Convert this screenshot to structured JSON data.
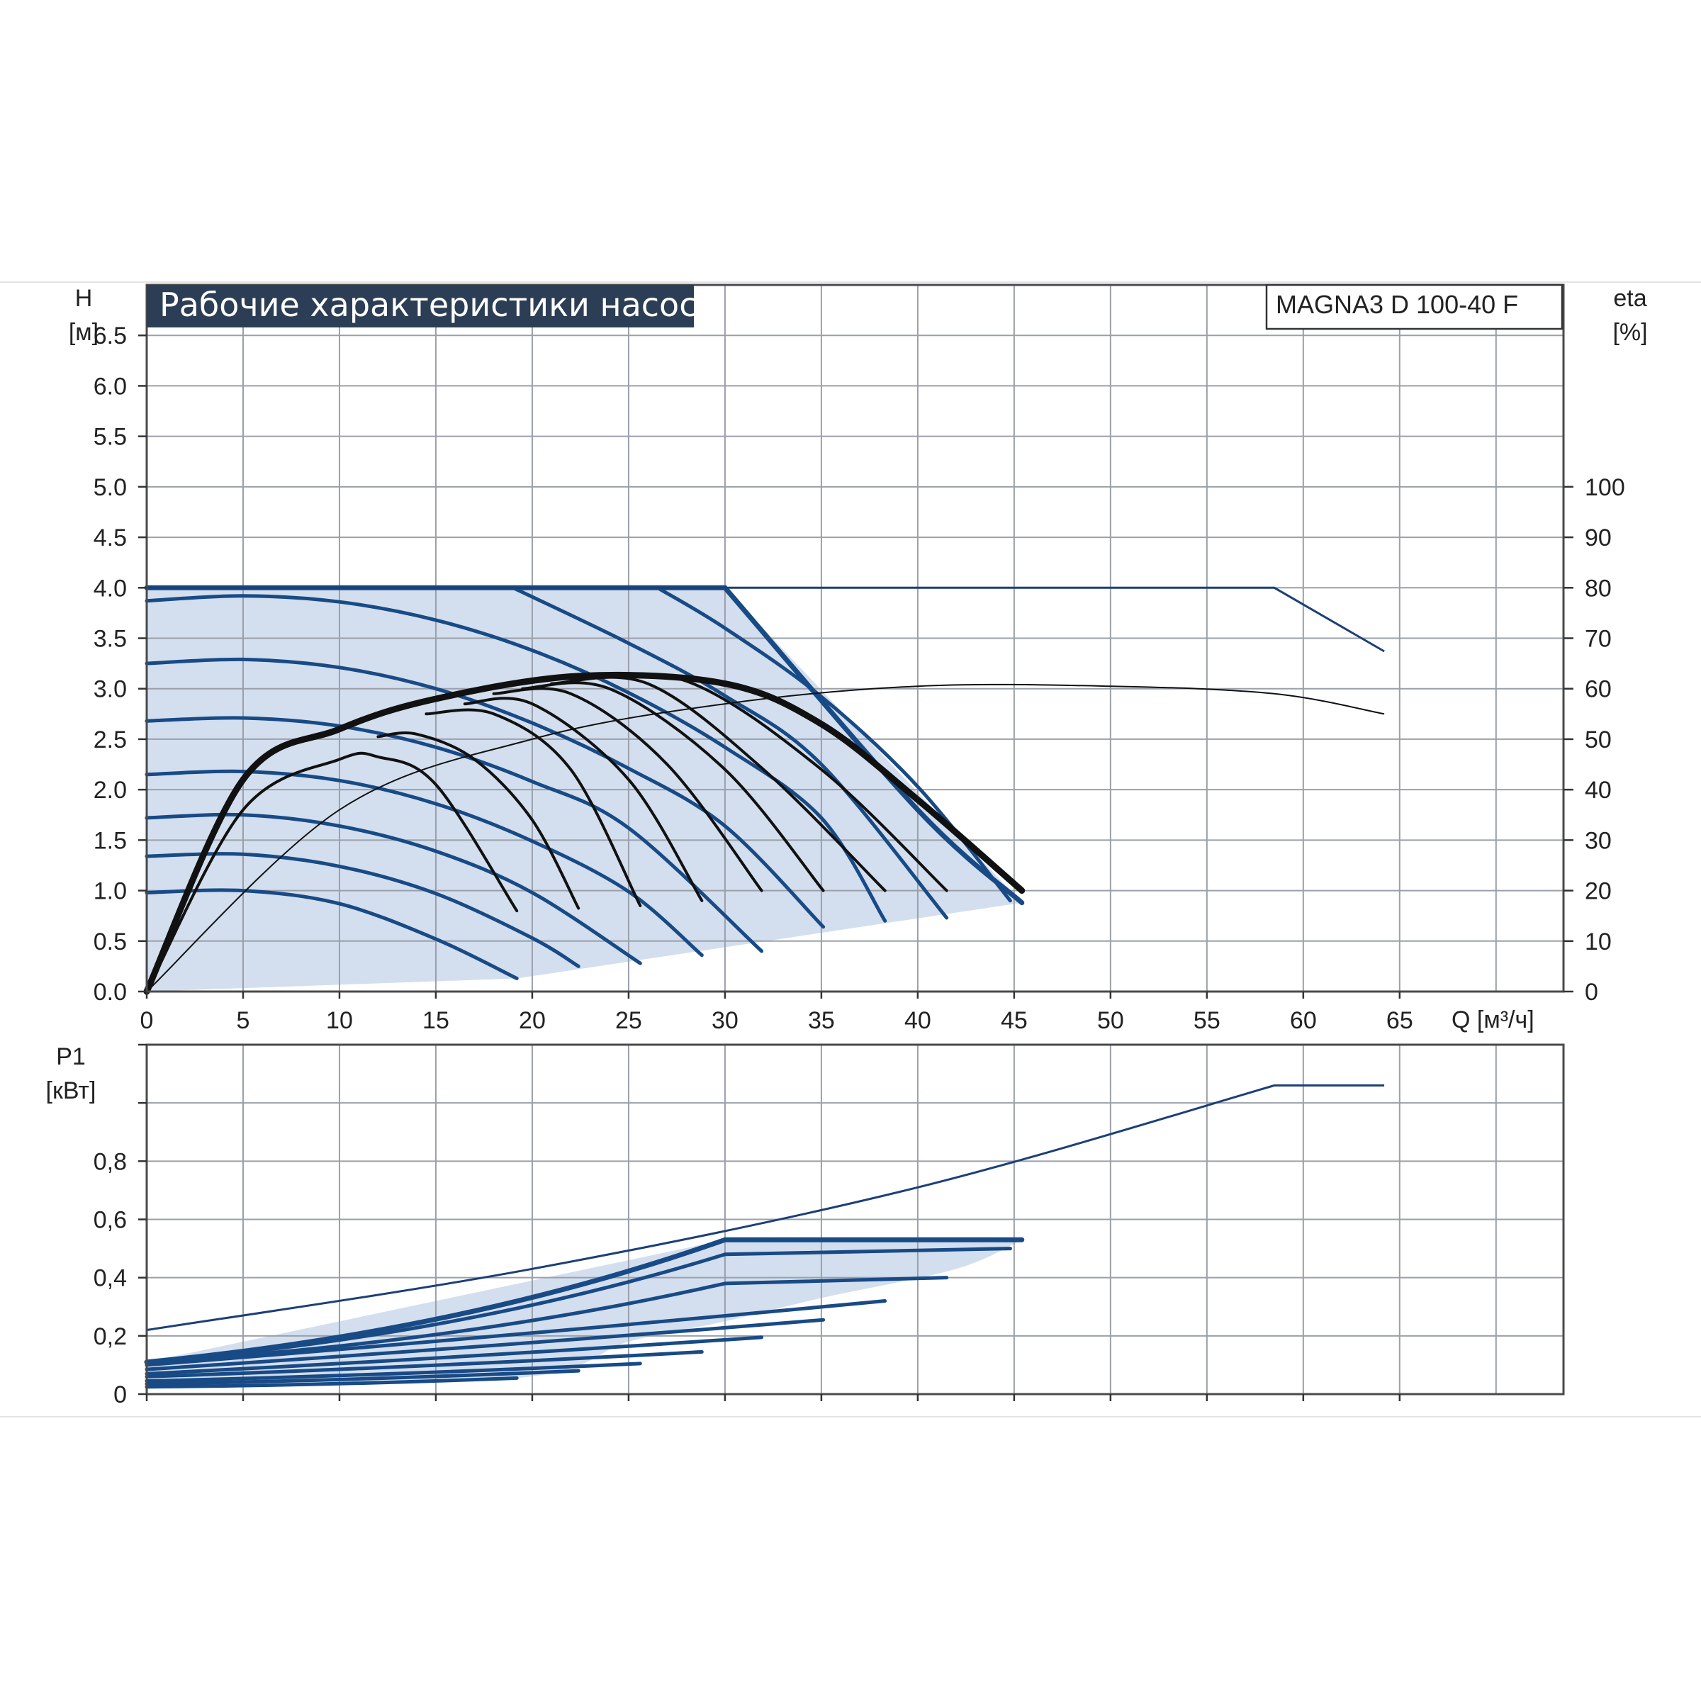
{
  "chart_data": [
    {
      "type": "line",
      "title": "Рабочие характеристики насоса",
      "model": "MAGNA3 D 100-40 F",
      "ylabel": "H",
      "yunit": "[м]",
      "y2label": "eta",
      "y2unit": "[%]",
      "xlabel": "Q [м³/ч]",
      "xlim": [
        0,
        73.5
      ],
      "ylim": [
        0,
        7.0
      ],
      "y2lim": [
        0,
        140
      ],
      "grid": true,
      "x_ticks": [
        "0",
        "5",
        "10",
        "15",
        "20",
        "25",
        "30",
        "35",
        "40",
        "45",
        "50",
        "55",
        "60",
        "65"
      ],
      "x_tick_values": [
        0,
        5,
        10,
        15,
        20,
        25,
        30,
        35,
        40,
        45,
        50,
        55,
        60,
        65
      ],
      "y_ticks": [
        "0.0",
        "0.5",
        "1.0",
        "1.5",
        "2.0",
        "2.5",
        "3.0",
        "3.5",
        "4.0",
        "4.5",
        "5.0",
        "5.5",
        "6.0",
        "6.5"
      ],
      "y_tick_values": [
        0,
        0.5,
        1.0,
        1.5,
        2.0,
        2.5,
        3.0,
        3.5,
        4.0,
        4.5,
        5.0,
        5.5,
        6.0,
        6.5
      ],
      "y2_ticks": [
        "0",
        "10",
        "20",
        "30",
        "40",
        "50",
        "60",
        "70",
        "80",
        "90",
        "100"
      ],
      "y2_tick_values": [
        0,
        10,
        20,
        30,
        40,
        50,
        60,
        70,
        80,
        90,
        100
      ],
      "operating_area": {
        "x": [
          0,
          30,
          45.4,
          19.2,
          0
        ],
        "y": [
          4.0,
          4.0,
          0.88,
          0.13,
          0.0
        ]
      },
      "speed_curves": [
        {
          "x": [
            0,
            5,
            10,
            15,
            19.2
          ],
          "y": [
            0.98,
            1.0,
            0.87,
            0.52,
            0.13
          ]
        },
        {
          "x": [
            0,
            5,
            10,
            15,
            20,
            22.4
          ],
          "y": [
            1.34,
            1.36,
            1.24,
            0.97,
            0.53,
            0.25
          ]
        },
        {
          "x": [
            0,
            5,
            10,
            15,
            20,
            25.6
          ],
          "y": [
            1.72,
            1.75,
            1.64,
            1.39,
            0.98,
            0.28
          ]
        },
        {
          "x": [
            0,
            5,
            10,
            15,
            20,
            25,
            28.8
          ],
          "y": [
            2.15,
            2.18,
            2.09,
            1.86,
            1.49,
            0.99,
            0.36
          ]
        },
        {
          "x": [
            0,
            5,
            10,
            15,
            20,
            25,
            31.9
          ],
          "y": [
            2.68,
            2.71,
            2.63,
            2.42,
            2.08,
            1.62,
            0.4
          ]
        },
        {
          "x": [
            0,
            5,
            10,
            15,
            20,
            25,
            30,
            35.1
          ],
          "y": [
            3.25,
            3.29,
            3.21,
            3.0,
            2.66,
            2.21,
            1.64,
            0.64
          ]
        },
        {
          "x": [
            0,
            5,
            10,
            15,
            20,
            25,
            30,
            35,
            38.3
          ],
          "y": [
            3.87,
            3.92,
            3.86,
            3.68,
            3.38,
            2.96,
            2.42,
            1.72,
            0.7
          ]
        },
        {
          "x": [
            19,
            25,
            30,
            35,
            41.5
          ],
          "y": [
            4.0,
            3.45,
            2.93,
            2.25,
            0.73
          ]
        },
        {
          "x": [
            26.5,
            30,
            35,
            40,
            44.8
          ],
          "y": [
            4.0,
            3.6,
            2.92,
            2.03,
            0.9
          ]
        },
        {
          "x": [
            0,
            30,
            40,
            45.4
          ],
          "y": [
            4.0,
            4.0,
            1.8,
            0.88
          ]
        }
      ],
      "max_curve": {
        "x": [
          0,
          58.5,
          64.2
        ],
        "y": [
          4.0,
          4.0,
          3.37
        ]
      },
      "efficiency_curves": [
        {
          "x": [
            0,
            5,
            10,
            15,
            22.4,
            30,
            35,
            40,
            45.4
          ],
          "eta": [
            0,
            42,
            52,
            58,
            62.5,
            61,
            53,
            38,
            20
          ]
        },
        {
          "x": [
            0,
            5,
            10,
            12,
            15,
            19.2
          ],
          "eta": [
            0,
            36,
            46,
            46.5,
            41,
            16
          ]
        },
        {
          "x": [
            12,
            14,
            17,
            20,
            22.4
          ],
          "eta": [
            50.5,
            51,
            46,
            34,
            16.5
          ]
        },
        {
          "x": [
            14.5,
            18,
            22,
            25.6
          ],
          "eta": [
            55,
            55,
            44,
            17
          ]
        },
        {
          "x": [
            16.5,
            20,
            25,
            28.8
          ],
          "eta": [
            57,
            57,
            42,
            18
          ]
        },
        {
          "x": [
            18,
            22,
            27,
            31.9
          ],
          "eta": [
            59,
            59,
            45,
            20
          ]
        },
        {
          "x": [
            19.5,
            24,
            30,
            35.1
          ],
          "eta": [
            60,
            60,
            44,
            20
          ]
        },
        {
          "x": [
            21,
            26,
            32,
            38.3
          ],
          "eta": [
            61,
            61,
            44,
            20
          ]
        },
        {
          "x": [
            22,
            28,
            35,
            41.5
          ],
          "eta": [
            62,
            61.5,
            44,
            20
          ]
        },
        {
          "x": [
            0,
            10,
            20,
            30,
            40,
            50,
            58.5,
            64.2
          ],
          "eta": [
            0,
            36,
            50,
            57,
            60.5,
            60.5,
            59,
            55
          ]
        }
      ]
    },
    {
      "type": "line",
      "ylabel": "P1",
      "yunit": "[кВт]",
      "xlim": [
        0,
        73.5
      ],
      "ylim": [
        0,
        1.2
      ],
      "grid": true,
      "y_ticks": [
        "0",
        "0,2",
        "0,4",
        "0,6",
        "0,8"
      ],
      "y_tick_values": [
        0,
        0.2,
        0.4,
        0.6,
        0.8
      ],
      "operating_area": {
        "x": [
          0,
          30,
          45.4,
          42,
          35,
          30,
          25,
          19.2,
          0
        ],
        "y": [
          0.11,
          0.53,
          0.53,
          0.43,
          0.33,
          0.25,
          0.18,
          0.055,
          0.025
        ]
      },
      "power_curves": [
        {
          "x": [
            0,
            19.2
          ],
          "y": [
            0.025,
            0.055
          ]
        },
        {
          "x": [
            0,
            22.4
          ],
          "y": [
            0.035,
            0.08
          ]
        },
        {
          "x": [
            0,
            25.6
          ],
          "y": [
            0.045,
            0.105
          ]
        },
        {
          "x": [
            0,
            28.8
          ],
          "y": [
            0.06,
            0.145
          ]
        },
        {
          "x": [
            0,
            31.9
          ],
          "y": [
            0.07,
            0.195
          ]
        },
        {
          "x": [
            0,
            35.1
          ],
          "y": [
            0.085,
            0.255
          ]
        },
        {
          "x": [
            0,
            38.3
          ],
          "y": [
            0.1,
            0.32
          ]
        },
        {
          "x": [
            0,
            30,
            41.5
          ],
          "y": [
            0.11,
            0.38,
            0.4
          ]
        },
        {
          "x": [
            0,
            30,
            44.8
          ],
          "y": [
            0.11,
            0.48,
            0.5
          ]
        },
        {
          "x": [
            0,
            30,
            45.4
          ],
          "y": [
            0.11,
            0.53,
            0.53
          ]
        }
      ],
      "max_power_curve": {
        "x": [
          0,
          20,
          40,
          58.5,
          64.2
        ],
        "y": [
          0.22,
          0.43,
          0.71,
          1.06,
          1.06
        ]
      }
    }
  ]
}
